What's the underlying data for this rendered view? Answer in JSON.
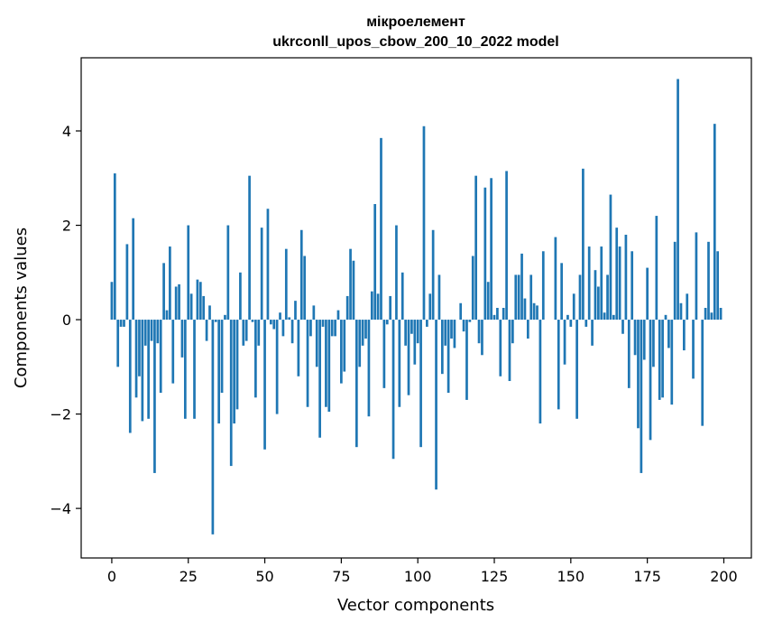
{
  "chart_data": {
    "type": "bar",
    "title": "мікроелемент",
    "subtitle": "ukrconll_upos_cbow_200_10_2022 model",
    "xlabel": "Vector components",
    "ylabel": "Components values",
    "xlim": [
      -10,
      209
    ],
    "ylim": [
      -5.05,
      5.55
    ],
    "xticks": [
      0,
      25,
      50,
      75,
      100,
      125,
      150,
      175,
      200
    ],
    "yticks": [
      -4,
      -2,
      0,
      2,
      4
    ],
    "ytick_labels": [
      "−4",
      "−2",
      "0",
      "2",
      "4"
    ],
    "grid": false,
    "bar_color": "#1f77b4",
    "x": [
      0,
      1,
      2,
      3,
      4,
      5,
      6,
      7,
      8,
      9,
      10,
      11,
      12,
      13,
      14,
      15,
      16,
      17,
      18,
      19,
      20,
      21,
      22,
      23,
      24,
      25,
      26,
      27,
      28,
      29,
      30,
      31,
      32,
      33,
      34,
      35,
      36,
      37,
      38,
      39,
      40,
      41,
      42,
      43,
      44,
      45,
      46,
      47,
      48,
      49,
      50,
      51,
      52,
      53,
      54,
      55,
      56,
      57,
      58,
      59,
      60,
      61,
      62,
      63,
      64,
      65,
      66,
      67,
      68,
      69,
      70,
      71,
      72,
      73,
      74,
      75,
      76,
      77,
      78,
      79,
      80,
      81,
      82,
      83,
      84,
      85,
      86,
      87,
      88,
      89,
      90,
      91,
      92,
      93,
      94,
      95,
      96,
      97,
      98,
      99,
      100,
      101,
      102,
      103,
      104,
      105,
      106,
      107,
      108,
      109,
      110,
      111,
      112,
      113,
      114,
      115,
      116,
      117,
      118,
      119,
      120,
      121,
      122,
      123,
      124,
      125,
      126,
      127,
      128,
      129,
      130,
      131,
      132,
      133,
      134,
      135,
      136,
      137,
      138,
      139,
      140,
      141,
      142,
      143,
      144,
      145,
      146,
      147,
      148,
      149,
      150,
      151,
      152,
      153,
      154,
      155,
      156,
      157,
      158,
      159,
      160,
      161,
      162,
      163,
      164,
      165,
      166,
      167,
      168,
      169,
      170,
      171,
      172,
      173,
      174,
      175,
      176,
      177,
      178,
      179,
      180,
      181,
      182,
      183,
      184,
      185,
      186,
      187,
      188,
      189,
      190,
      191,
      192,
      193,
      194,
      195,
      196,
      197,
      198,
      199
    ],
    "values": [
      0.8,
      3.1,
      -1.0,
      -0.15,
      -0.15,
      1.6,
      -2.4,
      2.15,
      -1.65,
      -1.2,
      -2.15,
      -0.55,
      -2.1,
      -0.45,
      -3.25,
      -0.5,
      -1.55,
      1.2,
      0.2,
      1.55,
      -1.35,
      0.7,
      0.75,
      -0.8,
      -2.1,
      2.0,
      0.55,
      -2.1,
      0.85,
      0.8,
      0.5,
      -0.45,
      0.3,
      -4.55,
      -0.05,
      -2.2,
      -1.55,
      0.1,
      2.0,
      -3.1,
      -2.2,
      -1.9,
      1.0,
      -0.55,
      -0.45,
      3.05,
      -0.05,
      -1.65,
      -0.55,
      1.95,
      -2.75,
      2.35,
      -0.1,
      -0.2,
      -2.0,
      0.15,
      -0.35,
      1.5,
      0.05,
      -0.5,
      0.4,
      -1.2,
      1.9,
      1.35,
      -1.85,
      -0.35,
      0.3,
      -1.0,
      -2.5,
      -0.15,
      -1.85,
      -1.95,
      -0.35,
      -0.35,
      0.2,
      -1.35,
      -1.1,
      0.5,
      1.5,
      1.25,
      -2.7,
      -1.0,
      -0.55,
      -0.4,
      -2.05,
      0.6,
      2.45,
      0.55,
      3.85,
      -1.45,
      -0.1,
      0.5,
      -2.95,
      2.0,
      -1.85,
      1.0,
      -0.55,
      -1.6,
      -0.3,
      -0.95,
      -0.5,
      -2.7,
      4.1,
      -0.15,
      0.55,
      1.9,
      -3.6,
      0.95,
      -1.15,
      -0.55,
      -1.55,
      -0.4,
      -0.6,
      0.0,
      0.35,
      -0.25,
      -1.7,
      -0.05,
      1.35,
      3.05,
      -0.5,
      -0.75,
      2.8,
      0.8,
      3.0,
      0.1,
      0.25,
      -1.2,
      0.25,
      3.15,
      -1.3,
      -0.5,
      0.95,
      0.95,
      1.4,
      0.45,
      -0.4,
      0.95,
      0.35,
      0.3,
      -2.2,
      1.45,
      0.0,
      0.0,
      0.0,
      1.75,
      -1.9,
      1.2,
      -0.95,
      0.1,
      -0.15,
      0.55,
      -2.1,
      0.95,
      3.2,
      -0.15,
      1.55,
      -0.55,
      1.05,
      0.7,
      1.55,
      0.15,
      0.95,
      2.65,
      0.1,
      1.95,
      1.55,
      -0.3,
      1.8,
      -1.45,
      1.45,
      -0.75,
      -2.3,
      -3.25,
      -0.85,
      1.1,
      -2.55,
      -1.0,
      2.2,
      -1.7,
      -1.65,
      0.1,
      -0.6,
      -1.8,
      1.65,
      5.1,
      0.35,
      -0.65,
      0.55,
      0.0,
      -1.25,
      1.85,
      0.0,
      -2.25,
      0.25,
      1.65,
      0.15,
      4.15,
      1.45,
      0.25
    ]
  }
}
